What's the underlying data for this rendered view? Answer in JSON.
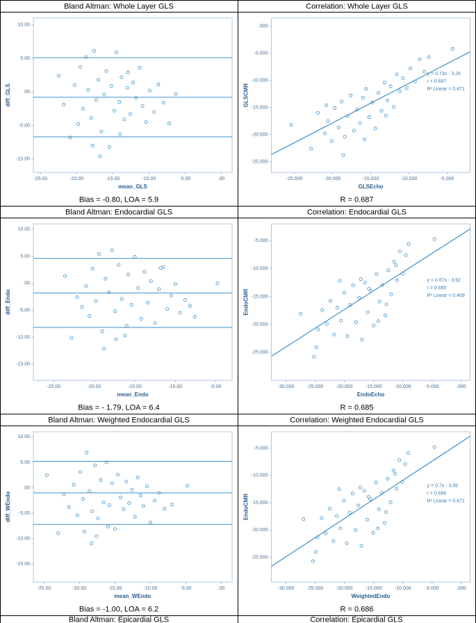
{
  "chart_data": [
    {
      "type": "scatter",
      "title": "Bland Altman: Whole Layer GLS",
      "caption": "Bias = -0.80, LOA = 5.9",
      "xlabel": "mean_GLS",
      "ylabel": "diff_GLS",
      "color": "#3d8fc6",
      "x": [
        -22.5,
        -21.8,
        -20.9,
        -20.3,
        -19.8,
        -19.5,
        -19.1,
        -18.7,
        -18.4,
        -18.0,
        -17.6,
        -17.3,
        -17.0,
        -16.6,
        -16.2,
        -15.9,
        -15.5,
        -15.2,
        -14.8,
        -14.5,
        -14.1,
        -13.8,
        -13.4,
        -13.0,
        -12.6,
        -12.2,
        -11.8,
        -11.3,
        -10.9,
        -10.4,
        -9.9,
        -9.3,
        -8.7,
        -8.0,
        -7.2,
        -6.3,
        -16.8,
        -14.0,
        -17.8,
        -12.9
      ],
      "values": [
        2.4,
        -1.9,
        -6.8,
        1.0,
        -4.8,
        3.7,
        -2.5,
        5.2,
        0.3,
        -3.9,
        6.1,
        -1.2,
        1.8,
        -5.9,
        -0.4,
        3.1,
        -8.2,
        0.9,
        -2.8,
        5.9,
        -1.5,
        2.2,
        -4.1,
        0.6,
        -3.3,
        1.4,
        -0.9,
        3.6,
        -2.1,
        -4.5,
        0.2,
        -3.0,
        1.1,
        -1.6,
        -4.7,
        -0.3,
        -9.6,
        -6.3,
        -8.0,
        2.9
      ],
      "hlines": [
        5.1,
        -0.8,
        -6.7
      ],
      "xlim": [
        -26,
        1.5
      ],
      "ylim": [
        -12,
        11
      ],
      "xticks": [
        {
          "value": -25,
          "label": "-25.00"
        },
        {
          "value": -20,
          "label": "-20.00"
        },
        {
          "value": -15,
          "label": "-15.00"
        },
        {
          "value": -10,
          "label": "-10.00"
        },
        {
          "value": -5,
          "label": "-5.00"
        },
        {
          "value": 0,
          "label": ".00"
        }
      ],
      "yticks": [
        {
          "value": 10,
          "label": "10.00"
        },
        {
          "value": 5,
          "label": "5.00"
        },
        {
          "value": 0,
          "label": ".00"
        },
        {
          "value": -5,
          "label": "-5.00"
        },
        {
          "value": -10,
          "label": "-10.00"
        }
      ]
    },
    {
      "type": "scatter",
      "title": "Correlation: Whole Layer GLS",
      "caption": "R = 0.687",
      "xlabel": "GLSEcho",
      "ylabel": "GLSCMR",
      "color": "#3d8fc6",
      "x": [
        -25.4,
        -22.8,
        -21.9,
        -21.0,
        -20.6,
        -20.1,
        -19.7,
        -19.2,
        -18.8,
        -18.4,
        -18.0,
        -17.6,
        -17.2,
        -16.8,
        -16.4,
        -16.0,
        -15.6,
        -15.2,
        -14.8,
        -14.4,
        -14.0,
        -13.6,
        -13.2,
        -12.8,
        -12.4,
        -12.0,
        -11.6,
        -11.2,
        -10.8,
        -10.3,
        -9.8,
        -9.2,
        -8.6,
        -8.0,
        -7.4,
        -4.3,
        -18.6,
        -15.8,
        -13.0,
        -20.8
      ],
      "values": [
        -18.2,
        -22.6,
        -16.0,
        -19.8,
        -17.5,
        -21.2,
        -15.1,
        -18.7,
        -13.9,
        -20.4,
        -16.6,
        -12.8,
        -19.3,
        -15.4,
        -17.9,
        -13.2,
        -11.6,
        -16.8,
        -14.1,
        -18.9,
        -12.3,
        -15.6,
        -10.4,
        -13.7,
        -11.1,
        -14.9,
        -8.9,
        -12.0,
        -9.6,
        -11.4,
        -7.8,
        -10.2,
        -6.1,
        -8.4,
        -5.7,
        -4.2,
        -23.8,
        -20.9,
        -16.5,
        -14.6
      ],
      "fit": {
        "slope": 0.73,
        "intercept": -3.26
      },
      "annotations": [
        "y = 0.73x - 3.26",
        "r = 0.687",
        "R² Linear = 0.471"
      ],
      "xlim": [
        -28,
        -2
      ],
      "ylim": [
        -27,
        1.5
      ],
      "xticks": [
        {
          "value": -25,
          "label": "-25.000"
        },
        {
          "value": -20,
          "label": "-20.000"
        },
        {
          "value": -15,
          "label": "-15.000"
        },
        {
          "value": -10,
          "label": "-10.000"
        },
        {
          "value": -5,
          "label": "-5.000"
        }
      ],
      "yticks": [
        {
          "value": 0,
          "label": ".000"
        },
        {
          "value": -5,
          "label": "-5.000"
        },
        {
          "value": -10,
          "label": "-10.000"
        },
        {
          "value": -15,
          "label": "-15.000"
        },
        {
          "value": -20,
          "label": "-20.000"
        },
        {
          "value": -25,
          "label": "-25.000"
        }
      ]
    },
    {
      "type": "scatter",
      "title": "Bland Altman: Endocardial GLS",
      "caption": "Bias = - 1.79, LOA = 6.4",
      "xlabel": "mean_Endo",
      "ylabel": "diff_Endo",
      "color": "#3d8fc6",
      "x": [
        -23.6,
        -22.8,
        -22.1,
        -21.5,
        -21.0,
        -20.6,
        -20.2,
        -19.8,
        -19.4,
        -19.0,
        -18.6,
        -18.2,
        -17.8,
        -17.4,
        -17.0,
        -16.6,
        -16.2,
        -15.8,
        -15.4,
        -15.0,
        -14.6,
        -14.2,
        -13.8,
        -13.4,
        -13.0,
        -12.5,
        -12.0,
        -11.5,
        -11.0,
        -10.5,
        -10.0,
        -9.4,
        -8.8,
        -8.2,
        -7.6,
        -4.8,
        -18.8,
        -17.3,
        -16.0,
        -11.8
      ],
      "values": [
        1.3,
        -10.1,
        -2.6,
        -4.4,
        -0.5,
        -6.1,
        2.7,
        -3.3,
        5.4,
        -8.9,
        0.8,
        -1.7,
        6.1,
        -5.2,
        3.4,
        -2.9,
        -9.7,
        1.6,
        -4.0,
        4.9,
        -0.9,
        -6.6,
        2.1,
        -3.6,
        0.4,
        -7.4,
        -1.1,
        3.0,
        -4.8,
        -2.3,
        -0.2,
        -5.5,
        -3.1,
        -4.2,
        -6.2,
        0.0,
        -12.1,
        -10.4,
        -7.9,
        2.8
      ],
      "hlines": [
        4.61,
        -1.79,
        -8.19
      ],
      "xlim": [
        -27.5,
        -3
      ],
      "ylim": [
        -18,
        11
      ],
      "xticks": [
        {
          "value": -25,
          "label": "-25.00"
        },
        {
          "value": -20,
          "label": "-20.00"
        },
        {
          "value": -15,
          "label": "-15.00"
        },
        {
          "value": -10,
          "label": "-10.00"
        },
        {
          "value": -5,
          "label": "-5.00"
        }
      ],
      "yticks": [
        {
          "value": 10,
          "label": "10.00"
        },
        {
          "value": 5,
          "label": "5.00"
        },
        {
          "value": 0,
          "label": ".00"
        },
        {
          "value": -5,
          "label": "-5.00"
        },
        {
          "value": -10,
          "label": "-10.00"
        },
        {
          "value": -15,
          "label": "-15.00"
        }
      ]
    },
    {
      "type": "scatter",
      "title": "Correlation: Endocardial GLS",
      "caption": "R = 0.685",
      "xlabel": "EndoEcho",
      "ylabel": "EndoCMR",
      "color": "#3d8fc6",
      "x": [
        -27.5,
        -25.2,
        -24.5,
        -23.8,
        -23.0,
        -22.4,
        -21.8,
        -21.2,
        -20.6,
        -20.0,
        -19.5,
        -19.0,
        -18.5,
        -18.0,
        -17.5,
        -17.0,
        -16.5,
        -16.0,
        -15.5,
        -15.0,
        -14.5,
        -14.0,
        -13.5,
        -13.0,
        -12.5,
        -12.0,
        -11.5,
        -11.0,
        -10.5,
        -10.0,
        -9.5,
        -9.0,
        -4.6,
        -24.8,
        -17.2,
        -15.8,
        -12.8,
        -20.8,
        -14.2,
        -11.2
      ],
      "values": [
        -18.1,
        -25.8,
        -20.9,
        -17.4,
        -19.9,
        -15.8,
        -21.8,
        -17.0,
        -19.3,
        -14.3,
        -22.1,
        -16.5,
        -13.0,
        -19.6,
        -15.2,
        -22.7,
        -12.5,
        -17.8,
        -14.0,
        -20.2,
        -11.0,
        -15.9,
        -12.9,
        -18.4,
        -10.3,
        -14.6,
        -8.8,
        -12.1,
        -6.9,
        -10.9,
        -7.6,
        -5.6,
        -4.7,
        -24.1,
        -11.9,
        -13.6,
        -16.4,
        -12.2,
        -19.4,
        -9.4
      ],
      "fit": {
        "slope": 0.67,
        "intercept": -3.92
      },
      "annotations": [
        "y = 0.67x - 3.92",
        "r = 0.685",
        "R² Linear = 0.469"
      ],
      "xlim": [
        -32.5,
        1.5
      ],
      "ylim": [
        -30,
        -2
      ],
      "xticks": [
        {
          "value": -30,
          "label": "-30.000"
        },
        {
          "value": -25,
          "label": "-25.000"
        },
        {
          "value": -20,
          "label": "-20.000"
        },
        {
          "value": -15,
          "label": "-15.000"
        },
        {
          "value": -10,
          "label": "-10.000"
        },
        {
          "value": -5,
          "label": "-5.000"
        },
        {
          "value": 0,
          "label": ".000"
        }
      ],
      "yticks": [
        {
          "value": -5,
          "label": "-5.000"
        },
        {
          "value": -10,
          "label": "-10.000"
        },
        {
          "value": -15,
          "label": "-15.000"
        },
        {
          "value": -20,
          "label": "-20.000"
        },
        {
          "value": -25,
          "label": "-25.000"
        }
      ]
    },
    {
      "type": "scatter",
      "title": "Bland Altman: Weighted Endocardial GLS",
      "caption": "Bias = -1.00, LOA = 6.2",
      "xlabel": "mean_WEndo",
      "ylabel": "diff_WEndo",
      "color": "#3d8fc6",
      "x": [
        -24.6,
        -23.0,
        -22.2,
        -21.5,
        -20.8,
        -20.3,
        -19.9,
        -19.5,
        -19.0,
        -18.6,
        -18.2,
        -17.8,
        -17.4,
        -17.0,
        -16.6,
        -16.2,
        -15.8,
        -15.4,
        -15.0,
        -14.6,
        -14.2,
        -13.8,
        -13.4,
        -13.0,
        -12.6,
        -12.2,
        -11.8,
        -11.4,
        -11.0,
        -10.5,
        -10.0,
        -9.4,
        -8.8,
        -8.0,
        -7.0,
        -4.8,
        -18.3,
        -17.6,
        -16.0,
        -19.3
      ],
      "values": [
        2.5,
        -8.9,
        -1.3,
        -3.8,
        0.6,
        -5.4,
        3.1,
        -2.2,
        6.9,
        -0.7,
        -4.6,
        4.4,
        -6.0,
        1.5,
        -2.9,
        5.0,
        -3.4,
        0.9,
        -8.1,
        2.6,
        -1.9,
        -4.2,
        1.2,
        -3.0,
        -0.4,
        -5.7,
        2.0,
        -1.5,
        -3.6,
        0.3,
        -6.8,
        -2.5,
        -1.0,
        -4.1,
        -3.3,
        0.4,
        -10.9,
        -9.5,
        -7.6,
        -8.6
      ],
      "hlines": [
        5.2,
        -1.0,
        -7.2
      ],
      "xlim": [
        -26.5,
        1.5
      ],
      "ylim": [
        -18.5,
        11
      ],
      "xticks": [
        {
          "value": -25,
          "label": "-25.00"
        },
        {
          "value": -20,
          "label": "-20.00"
        },
        {
          "value": -15,
          "label": "-15.00"
        },
        {
          "value": -10,
          "label": "-10.00"
        },
        {
          "value": -5,
          "label": "-5.00"
        },
        {
          "value": 0,
          "label": ".00"
        }
      ],
      "yticks": [
        {
          "value": 10,
          "label": "10.00"
        },
        {
          "value": 5,
          "label": "5.00"
        },
        {
          "value": 0,
          "label": ".00"
        },
        {
          "value": -5,
          "label": "-5.00"
        },
        {
          "value": -10,
          "label": "-10.00"
        },
        {
          "value": -15,
          "label": "-15.00"
        }
      ]
    },
    {
      "type": "scatter",
      "title": "Correlation: Weighted Endocardial GLS",
      "caption": "R = 0.686",
      "xlabel": "WeightedEndo",
      "ylabel": "EndoCMR",
      "color": "#3d8fc6",
      "x": [
        -27.0,
        -25.4,
        -24.6,
        -23.9,
        -23.2,
        -22.5,
        -21.9,
        -21.3,
        -20.7,
        -20.1,
        -19.6,
        -19.1,
        -18.6,
        -18.1,
        -17.6,
        -17.1,
        -16.6,
        -16.1,
        -15.6,
        -15.1,
        -14.6,
        -14.1,
        -13.6,
        -13.1,
        -12.6,
        -12.1,
        -11.6,
        -11.1,
        -10.6,
        -10.1,
        -9.6,
        -9.1,
        -4.6,
        -24.9,
        -17.3,
        -15.9,
        -12.9,
        -20.9,
        -14.3,
        -11.3
      ],
      "values": [
        -18.0,
        -25.7,
        -21.3,
        -17.8,
        -20.6,
        -16.1,
        -22.0,
        -17.4,
        -19.7,
        -14.6,
        -22.4,
        -16.8,
        -13.3,
        -20.0,
        -15.5,
        -22.9,
        -12.8,
        -18.1,
        -14.3,
        -20.5,
        -11.3,
        -16.2,
        -13.2,
        -18.7,
        -10.6,
        -14.9,
        -9.1,
        -12.4,
        -7.2,
        -11.2,
        -7.9,
        -5.9,
        -4.8,
        -24.0,
        -12.2,
        -13.9,
        -16.7,
        -12.5,
        -19.7,
        -9.7
      ],
      "fit": {
        "slope": 0.7,
        "intercept": -3.88
      },
      "annotations": [
        "y = 0.7x - 3.88",
        "r = 0.686",
        "R² Linear = 0.471"
      ],
      "xlim": [
        -32.5,
        1.5
      ],
      "ylim": [
        -29.5,
        -2
      ],
      "xticks": [
        {
          "value": -30,
          "label": "-30.000"
        },
        {
          "value": -25,
          "label": "-25.000"
        },
        {
          "value": -20,
          "label": "-20.000"
        },
        {
          "value": -15,
          "label": "-15.000"
        },
        {
          "value": -10,
          "label": "-10.000"
        },
        {
          "value": -5,
          "label": "-5.000"
        },
        {
          "value": 0,
          "label": ".000"
        }
      ],
      "yticks": [
        {
          "value": -5,
          "label": "-5.000"
        },
        {
          "value": -10,
          "label": "-10.000"
        },
        {
          "value": -15,
          "label": "-15.000"
        },
        {
          "value": -20,
          "label": "-20.000"
        },
        {
          "value": -25,
          "label": "-25.000"
        }
      ]
    }
  ],
  "table": {
    "last_row": [
      "Bland Altman: Epicardial GLS",
      "Correlation: Epicardial GLS"
    ]
  }
}
